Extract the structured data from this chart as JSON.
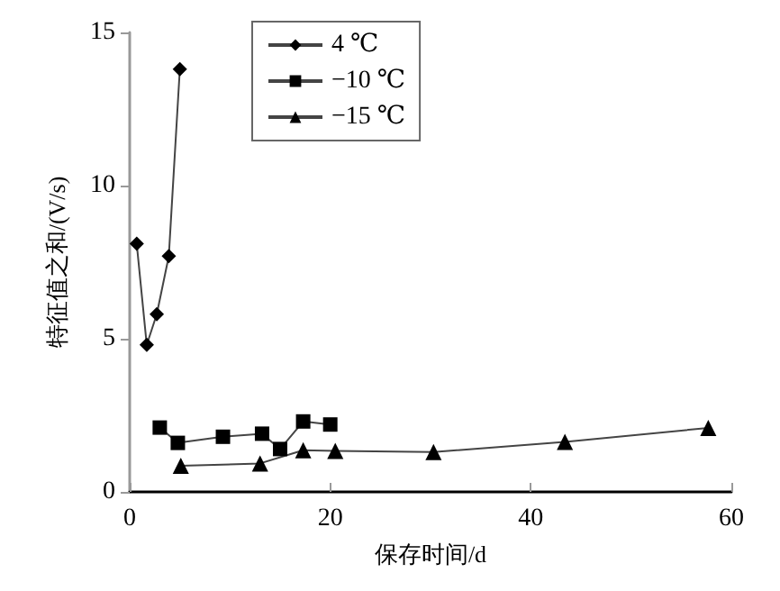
{
  "chart_data": {
    "type": "line",
    "xlabel": "保存时间/d",
    "ylabel": "特征值之和/(V/s)",
    "xlim": [
      0,
      60
    ],
    "xticks": [
      0,
      20,
      40,
      60
    ],
    "ylim": [
      0,
      15
    ],
    "yticks": [
      0,
      5,
      10,
      15
    ],
    "grid": false,
    "legend": "top",
    "line_style": "solid",
    "series": [
      {
        "name": "4 ℃",
        "color": "#000000",
        "marker": "diamond",
        "x": [
          0.7,
          1.7,
          2.7,
          3.9,
          5.0
        ],
        "values": [
          8.1,
          4.8,
          5.8,
          7.7,
          13.8
        ]
      },
      {
        "name": "−10 ℃",
        "color": "#000000",
        "marker": "square",
        "x": [
          3.0,
          4.8,
          9.3,
          13.2,
          15.0,
          17.3,
          20.0
        ],
        "values": [
          2.1,
          1.6,
          1.8,
          1.9,
          1.4,
          2.3,
          2.2
        ]
      },
      {
        "name": "−15 ℃",
        "color": "#000000",
        "marker": "triangle",
        "x": [
          5.1,
          13.0,
          17.3,
          20.5,
          30.3,
          43.4,
          57.7
        ],
        "values": [
          0.85,
          0.93,
          1.36,
          1.34,
          1.3,
          1.63,
          2.09
        ]
      }
    ]
  }
}
